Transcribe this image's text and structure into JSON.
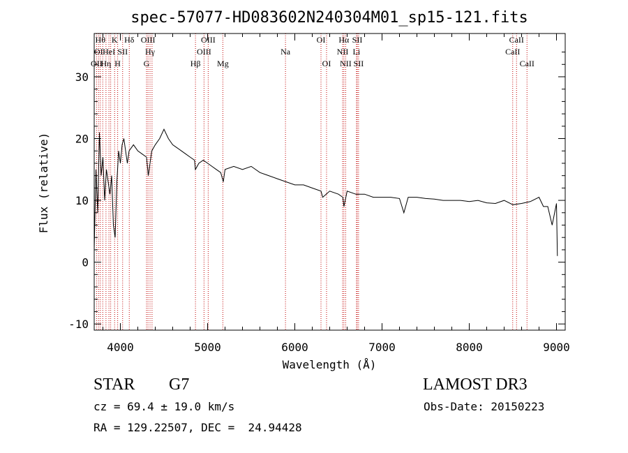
{
  "chart_data": {
    "type": "line",
    "title": "spec-57077-HD083602N240304M01_sp15-121.fits",
    "xlabel": "Wavelength (Å)",
    "ylabel": "Flux (relative)",
    "xlim": [
      3700,
      9100
    ],
    "ylim": [
      -11,
      37
    ],
    "xticks": [
      4000,
      5000,
      6000,
      7000,
      8000,
      9000
    ],
    "yticks": [
      -10,
      0,
      10,
      20,
      30
    ],
    "grid": false,
    "series": [
      {
        "x": [
          3700,
          3720,
          3740,
          3760,
          3780,
          3800,
          3820,
          3840,
          3860,
          3880,
          3900,
          3920,
          3940,
          3960,
          3980,
          4000,
          4020,
          4040,
          4060,
          4080,
          4100,
          4150,
          4200,
          4250,
          4300,
          4320,
          4340,
          4360,
          4400,
          4450,
          4500,
          4550,
          4600,
          4650,
          4700,
          4750,
          4800,
          4850,
          4860,
          4900,
          4950,
          5000,
          5050,
          5100,
          5150,
          5180,
          5200,
          5300,
          5400,
          5500,
          5600,
          5700,
          5800,
          5900,
          6000,
          6100,
          6200,
          6300,
          6320,
          6400,
          6500,
          6550,
          6563,
          6600,
          6700,
          6800,
          6900,
          7000,
          7100,
          7200,
          7250,
          7300,
          7400,
          7500,
          7600,
          7700,
          7800,
          7900,
          8000,
          8100,
          8200,
          8300,
          8400,
          8500,
          8600,
          8700,
          8800,
          8850,
          8900,
          8950,
          9000,
          9010
        ],
        "y": [
          2,
          15,
          8,
          21,
          14,
          17,
          10,
          15,
          13,
          11,
          14,
          6,
          4,
          13,
          18,
          16,
          19,
          20,
          18,
          16,
          18,
          19,
          18,
          17.5,
          17,
          14,
          16,
          18,
          19,
          20,
          21.5,
          20,
          19,
          18.5,
          18,
          17.5,
          17,
          16.5,
          15,
          16,
          16.5,
          16,
          15.5,
          15,
          14.5,
          13,
          15,
          15.5,
          15,
          15.5,
          14.5,
          14,
          13.5,
          13,
          12.5,
          12.5,
          12,
          11.5,
          10.5,
          11.5,
          11,
          10.5,
          9,
          11.5,
          11,
          11,
          10.5,
          10.5,
          10.5,
          10.3,
          8,
          10.5,
          10.5,
          10.3,
          10.2,
          10,
          10,
          10,
          9.8,
          10,
          9.6,
          9.5,
          10,
          9.3,
          9.5,
          9.8,
          10.5,
          9,
          9,
          6,
          9.5,
          1
        ]
      }
    ],
    "line_markers": [
      {
        "wl": 3727,
        "row": 2,
        "label": "OII"
      },
      {
        "wl": 3750,
        "row": 1,
        "label": "OI"
      },
      {
        "wl": 3770,
        "row": 0,
        "label": "Hθ"
      },
      {
        "wl": 3798,
        "row": 0,
        "label": ""
      },
      {
        "wl": 3835,
        "row": 2,
        "label": "Hη"
      },
      {
        "wl": 3869,
        "row": 1,
        "label": "HeI"
      },
      {
        "wl": 3889,
        "row": 0,
        "label": ""
      },
      {
        "wl": 3934,
        "row": 0,
        "label": "K"
      },
      {
        "wl": 3969,
        "row": 2,
        "label": "H"
      },
      {
        "wl": 4026,
        "row": 1,
        "label": "SII"
      },
      {
        "wl": 4102,
        "row": 0,
        "label": "Hδ"
      },
      {
        "wl": 4300,
        "row": 2,
        "label": "G"
      },
      {
        "wl": 4317,
        "row": 0,
        "label": "OIII"
      },
      {
        "wl": 4340,
        "row": 1,
        "label": "Hγ"
      },
      {
        "wl": 4363,
        "row": 0,
        "label": ""
      },
      {
        "wl": 4861,
        "row": 2,
        "label": "Hβ"
      },
      {
        "wl": 4959,
        "row": 1,
        "label": "OIII"
      },
      {
        "wl": 5007,
        "row": 0,
        "label": "OIII"
      },
      {
        "wl": 5175,
        "row": 2,
        "label": "Mg"
      },
      {
        "wl": 5893,
        "row": 1,
        "label": "Na"
      },
      {
        "wl": 6300,
        "row": 0,
        "label": "OI"
      },
      {
        "wl": 6364,
        "row": 2,
        "label": "OI"
      },
      {
        "wl": 6548,
        "row": 1,
        "label": "NII"
      },
      {
        "wl": 6563,
        "row": 0,
        "label": "Hα"
      },
      {
        "wl": 6583,
        "row": 2,
        "label": "NII"
      },
      {
        "wl": 6707,
        "row": 1,
        "label": "Li"
      },
      {
        "wl": 6716,
        "row": 0,
        "label": "SII"
      },
      {
        "wl": 6731,
        "row": 2,
        "label": "SII"
      },
      {
        "wl": 8498,
        "row": 1,
        "label": "CaII"
      },
      {
        "wl": 8542,
        "row": 0,
        "label": "CaII"
      },
      {
        "wl": 8662,
        "row": 2,
        "label": "CaII"
      }
    ]
  },
  "info": {
    "object_class": "STAR",
    "subclass": "G7",
    "survey": "LAMOST DR3",
    "cz": "cz = 69.4 ± 19.0 km/s",
    "obs_date": "Obs-Date: 20150223",
    "coords": "RA = 129.22507, DEC =  24.94428"
  },
  "colors": {
    "spectrum": "#000000",
    "marker_line": "#c00000",
    "background": "#ffffff"
  }
}
